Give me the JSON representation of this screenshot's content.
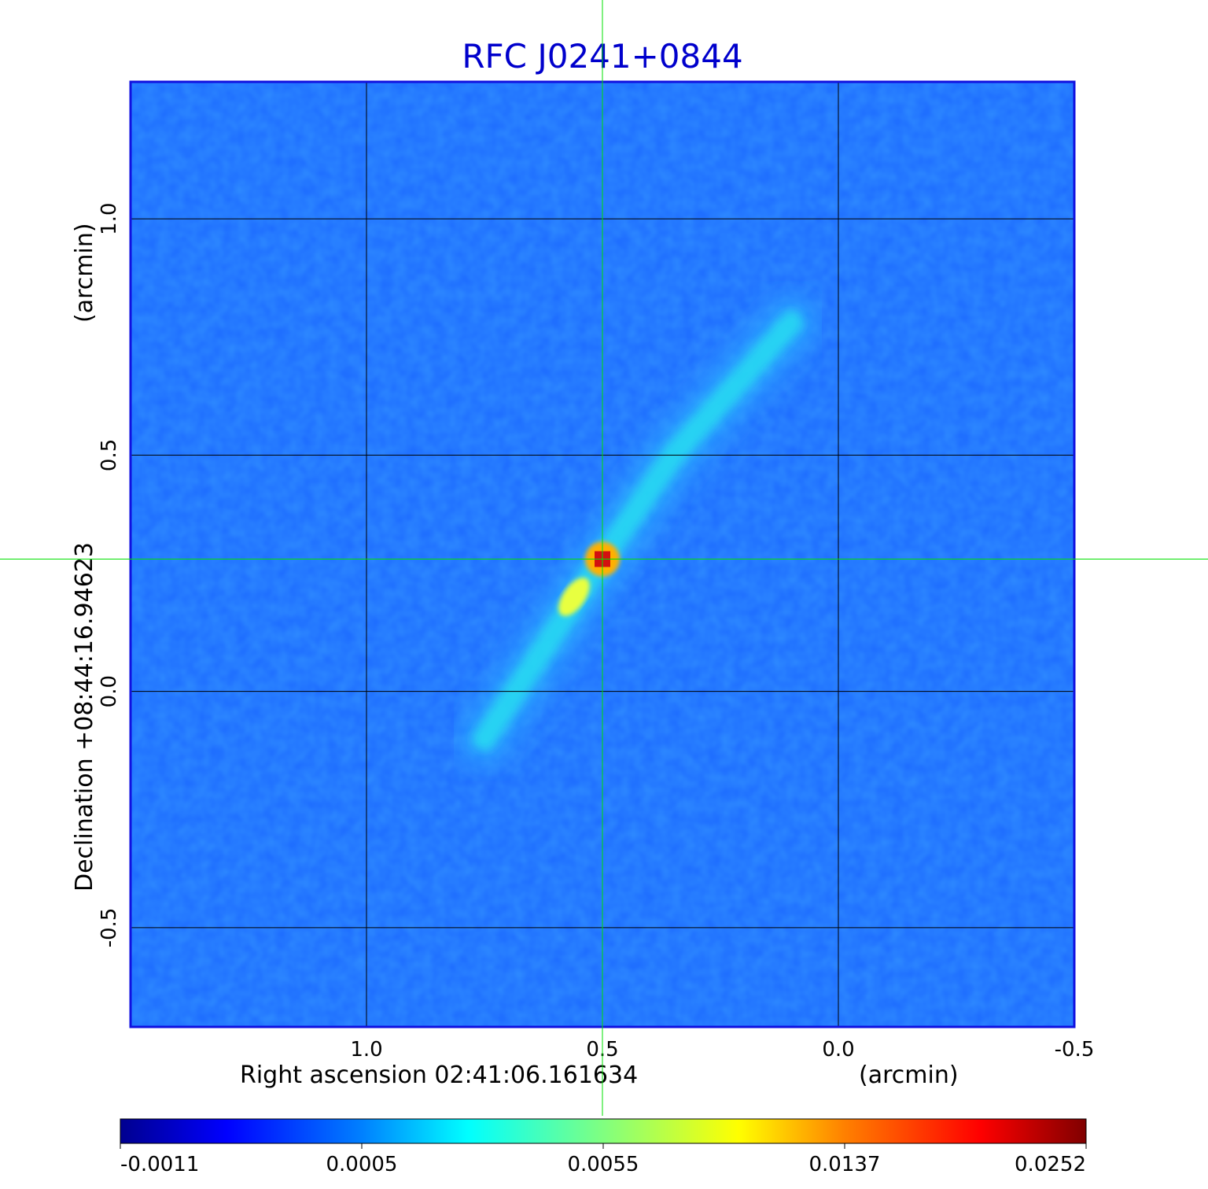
{
  "chart_data": {
    "type": "heatmap",
    "title": "RFC J0241+0844",
    "xlabel": "Right ascension  02:41:06.161634",
    "xunit": "(arcmin)",
    "ylabel": "Declination  +08:44:16.94623",
    "yunit": "(arcmin)",
    "x_ticks": [
      "1.0",
      "0.5",
      "0.0",
      "-0.5"
    ],
    "x_tick_values": [
      1.0,
      0.5,
      0.0,
      -0.5
    ],
    "y_ticks": [
      "1.0",
      "0.5",
      "0.0",
      "-0.5"
    ],
    "y_tick_values": [
      1.0,
      0.5,
      0.0,
      -0.5
    ],
    "xlim": [
      1.5,
      -0.5
    ],
    "ylim": [
      -0.71,
      1.29
    ],
    "grid": true,
    "crosshair": {
      "x": 0.5,
      "y": 0.28
    },
    "colorbar": {
      "ticks": [
        "-0.0011",
        "0.0005",
        "0.0055",
        "0.0137",
        "0.0252"
      ],
      "colormap": "jet"
    },
    "features": {
      "peak": {
        "x": 0.5,
        "y": 0.28,
        "value": 0.0252
      },
      "secondary_peak": {
        "x": 0.56,
        "y": 0.2,
        "value": 0.0137
      },
      "jet_axis_points": [
        [
          0.75,
          -0.1
        ],
        [
          0.5,
          0.28
        ],
        [
          0.35,
          0.5
        ],
        [
          0.1,
          0.78
        ]
      ],
      "background_level": 0.0
    }
  },
  "colors": {
    "title": "#0000cc",
    "frame": "#1010e0",
    "background": "#1f6fff",
    "crosshair": "#00e000",
    "grid": "#000000"
  }
}
